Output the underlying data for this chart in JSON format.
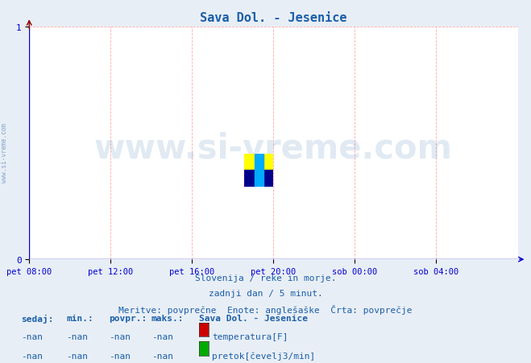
{
  "title": "Sava Dol. - Jesenice",
  "title_color": "#1a5fa8",
  "background_color": "#e8eef5",
  "plot_bg_color": "#ffffff",
  "grid_color": "#ffaaaa",
  "axis_color": "#0000cc",
  "ylim": [
    0,
    1
  ],
  "yticks": [
    0,
    1
  ],
  "xlim": [
    0,
    1
  ],
  "xtick_labels": [
    "pet 08:00",
    "pet 12:00",
    "pet 16:00",
    "pet 20:00",
    "sob 00:00",
    "sob 04:00"
  ],
  "xtick_positions": [
    0.0,
    0.1667,
    0.3333,
    0.5,
    0.6667,
    0.8333
  ],
  "watermark_text": "www.si-vreme.com",
  "watermark_color": "#1a5fa8",
  "watermark_alpha": 0.13,
  "sidebar_text": "www.si-vreme.com",
  "sidebar_color": "#1a5fa8",
  "footer_line1": "Slovenija / reke in morje.",
  "footer_line2": "zadnji dan / 5 minut.",
  "footer_line3": "Meritve: povprečne  Enote: anglešaške  Črta: povprečje",
  "footer_color": "#1a5fa8",
  "legend_title": "Sava Dol. - Jesenice",
  "legend_title_color": "#1a5fa8",
  "legend_header_cols": [
    "sedaj:",
    "min.:",
    "povpr.:",
    "maks.:"
  ],
  "legend_header_color": "#1a5fa8",
  "legend_items": [
    {
      "label": "temperatura[F]",
      "color": "#cc0000",
      "value_sedaj": "-nan",
      "value_min": "-nan",
      "value_povpr": "-nan",
      "value_maks": "-nan"
    },
    {
      "label": "pretok[čevelj3/min]",
      "color": "#00aa00",
      "value_sedaj": "-nan",
      "value_min": "-nan",
      "value_povpr": "-nan",
      "value_maks": "-nan"
    }
  ]
}
